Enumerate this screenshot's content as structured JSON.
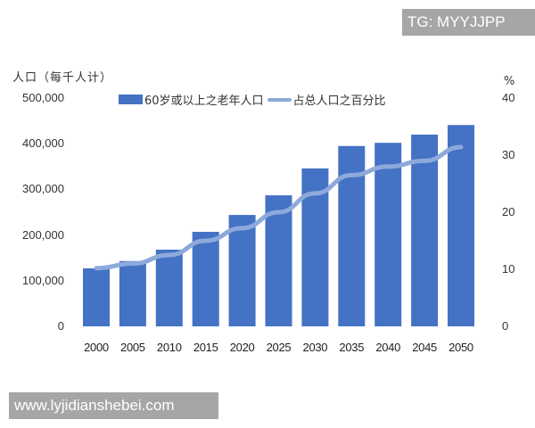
{
  "watermarks": {
    "top": "TG: MYYJJPP",
    "bottom": "www.lyjidianshebei.com"
  },
  "chart_data": {
    "type": "bar",
    "title": "",
    "xlabel": "",
    "ylabel": "人口（每千人计）",
    "y2label": "%",
    "categories": [
      "2000",
      "2005",
      "2010",
      "2015",
      "2020",
      "2025",
      "2030",
      "2035",
      "2040",
      "2045",
      "2050"
    ],
    "series": [
      {
        "name": "60岁或以上之老年人口",
        "type": "bar",
        "axis": "left",
        "color": "#4472c4",
        "values": [
          127000,
          143000,
          168000,
          207000,
          244000,
          287000,
          346000,
          395000,
          402000,
          420000,
          441000
        ]
      },
      {
        "name": "占总人口之百分比",
        "type": "line",
        "axis": "right",
        "color": "#8da9db",
        "values": [
          10.2,
          11.0,
          12.5,
          15.0,
          17.2,
          20.0,
          23.3,
          26.5,
          28.0,
          29.0,
          31.4
        ]
      }
    ],
    "ylim": [
      0,
      500000
    ],
    "y2lim": [
      0,
      40
    ],
    "yticks": [
      "500,000",
      "400,000",
      "300,000",
      "200,000",
      "100,000",
      "0"
    ],
    "y2ticks": [
      "40",
      "30",
      "20",
      "10",
      "0"
    ],
    "grid": false,
    "legend_position": "top"
  }
}
